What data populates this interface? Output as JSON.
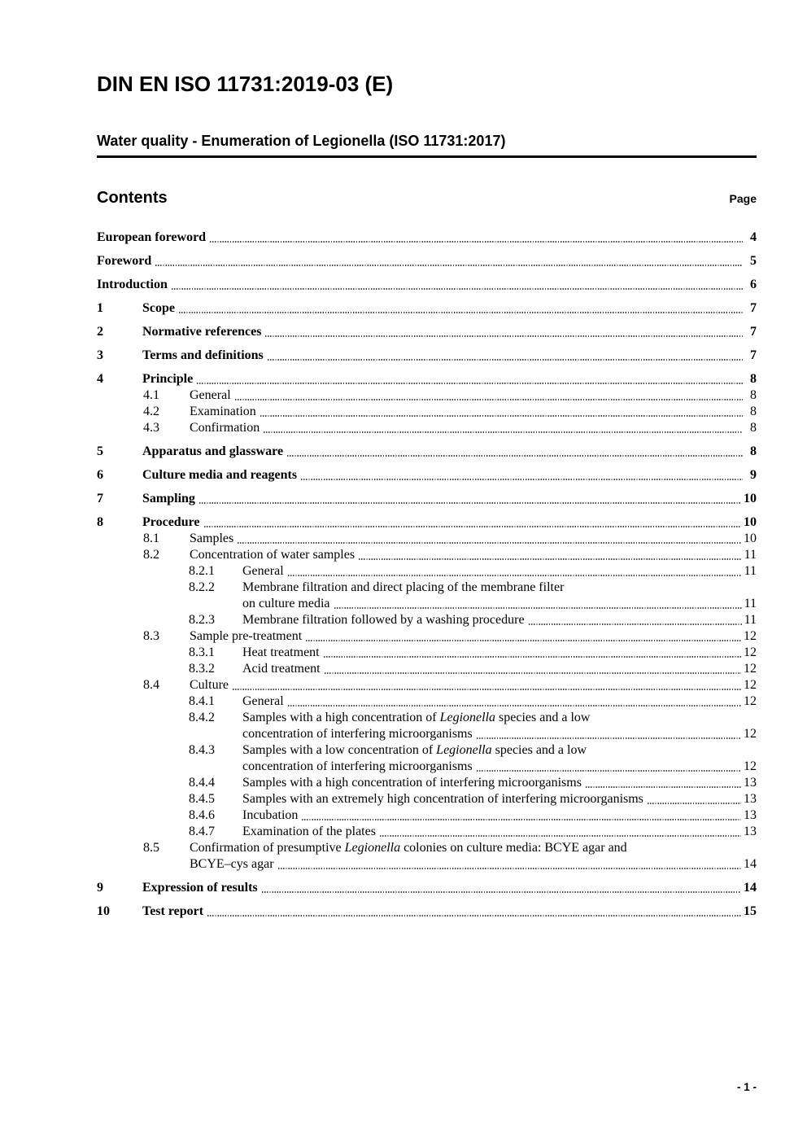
{
  "header": {
    "title": "DIN EN ISO 11731:2019-03 (E)",
    "subtitle": "Water quality - Enumeration of Legionella (ISO 11731:2017)"
  },
  "contents": {
    "heading": "Contents",
    "page_label": "Page"
  },
  "toc": [
    {
      "level": 0,
      "num": "",
      "text": "European foreword",
      "page": "4",
      "bold": true
    },
    {
      "level": 0,
      "num": "",
      "text": "Foreword",
      "page": "5",
      "bold": true
    },
    {
      "level": 0,
      "num": "",
      "text": "Introduction",
      "page": "6",
      "bold": true
    },
    {
      "level": 1,
      "num": "1",
      "text": "Scope",
      "page": "7",
      "bold": true
    },
    {
      "level": 1,
      "num": "2",
      "text": "Normative references",
      "page": "7",
      "bold": true
    },
    {
      "level": 1,
      "num": "3",
      "text": "Terms and definitions",
      "page": "7",
      "bold": true
    },
    {
      "level": 1,
      "num": "4",
      "text": "Principle",
      "page": "8",
      "bold": true
    },
    {
      "level": 2,
      "num": "4.1",
      "text": "General",
      "page": "8"
    },
    {
      "level": 2,
      "num": "4.2",
      "text": "Examination",
      "page": "8"
    },
    {
      "level": 2,
      "num": "4.3",
      "text": "Confirmation",
      "page": "8"
    },
    {
      "level": 1,
      "num": "5",
      "text": "Apparatus and glassware",
      "page": "8",
      "bold": true
    },
    {
      "level": 1,
      "num": "6",
      "text": "Culture media and reagents",
      "page": "9",
      "bold": true
    },
    {
      "level": 1,
      "num": "7",
      "text": "Sampling",
      "page": "10",
      "bold": true
    },
    {
      "level": 1,
      "num": "8",
      "text": "Procedure",
      "page": "10",
      "bold": true
    },
    {
      "level": 2,
      "num": "8.1",
      "text": "Samples",
      "page": "10"
    },
    {
      "level": 2,
      "num": "8.2",
      "text": "Concentration of water samples",
      "page": "11"
    },
    {
      "level": 3,
      "num": "8.2.1",
      "text": "General",
      "page": "11"
    },
    {
      "level": 3,
      "num": "8.2.2",
      "text": "Membrane filtration and direct placing of the membrane filter",
      "text2": "on culture media",
      "page": "11"
    },
    {
      "level": 3,
      "num": "8.2.3",
      "text": "Membrane filtration followed by a washing procedure",
      "page": "11"
    },
    {
      "level": 2,
      "num": "8.3",
      "text": "Sample pre-treatment",
      "page": "12"
    },
    {
      "level": 3,
      "num": "8.3.1",
      "text": "Heat treatment",
      "page": "12"
    },
    {
      "level": 3,
      "num": "8.3.2",
      "text": "Acid treatment",
      "page": "12"
    },
    {
      "level": 2,
      "num": "8.4",
      "text": "Culture",
      "page": "12"
    },
    {
      "level": 3,
      "num": "8.4.1",
      "text": "General",
      "page": "12"
    },
    {
      "level": 3,
      "num": "8.4.2",
      "text": "Samples with a high concentration of *Legionella* species and a low",
      "text2": "concentration of interfering microorganisms",
      "page": "12"
    },
    {
      "level": 3,
      "num": "8.4.3",
      "text": "Samples with a low concentration of *Legionella* species and a low",
      "text2": "concentration of interfering microorganisms",
      "page": "12"
    },
    {
      "level": 3,
      "num": "8.4.4",
      "text": "Samples with a high concentration of interfering microorganisms",
      "page": "13"
    },
    {
      "level": 3,
      "num": "8.4.5",
      "text": "Samples with an extremely high concentration of interfering microorganisms",
      "page": "13"
    },
    {
      "level": 3,
      "num": "8.4.6",
      "text": "Incubation",
      "page": "13"
    },
    {
      "level": 3,
      "num": "8.4.7",
      "text": "Examination of the plates",
      "page": "13"
    },
    {
      "level": 2,
      "num": "8.5",
      "text": "Confirmation of presumptive *Legionella* colonies on culture media: BCYE agar and",
      "text2": "BCYE–cys agar",
      "page": "14"
    },
    {
      "level": 1,
      "num": "9",
      "text": "Expression of results",
      "page": "14",
      "bold": true
    },
    {
      "level": 1,
      "num": "10",
      "text": "Test report",
      "page": "15",
      "bold": true
    }
  ],
  "footer": {
    "page_number": "- 1 -"
  }
}
